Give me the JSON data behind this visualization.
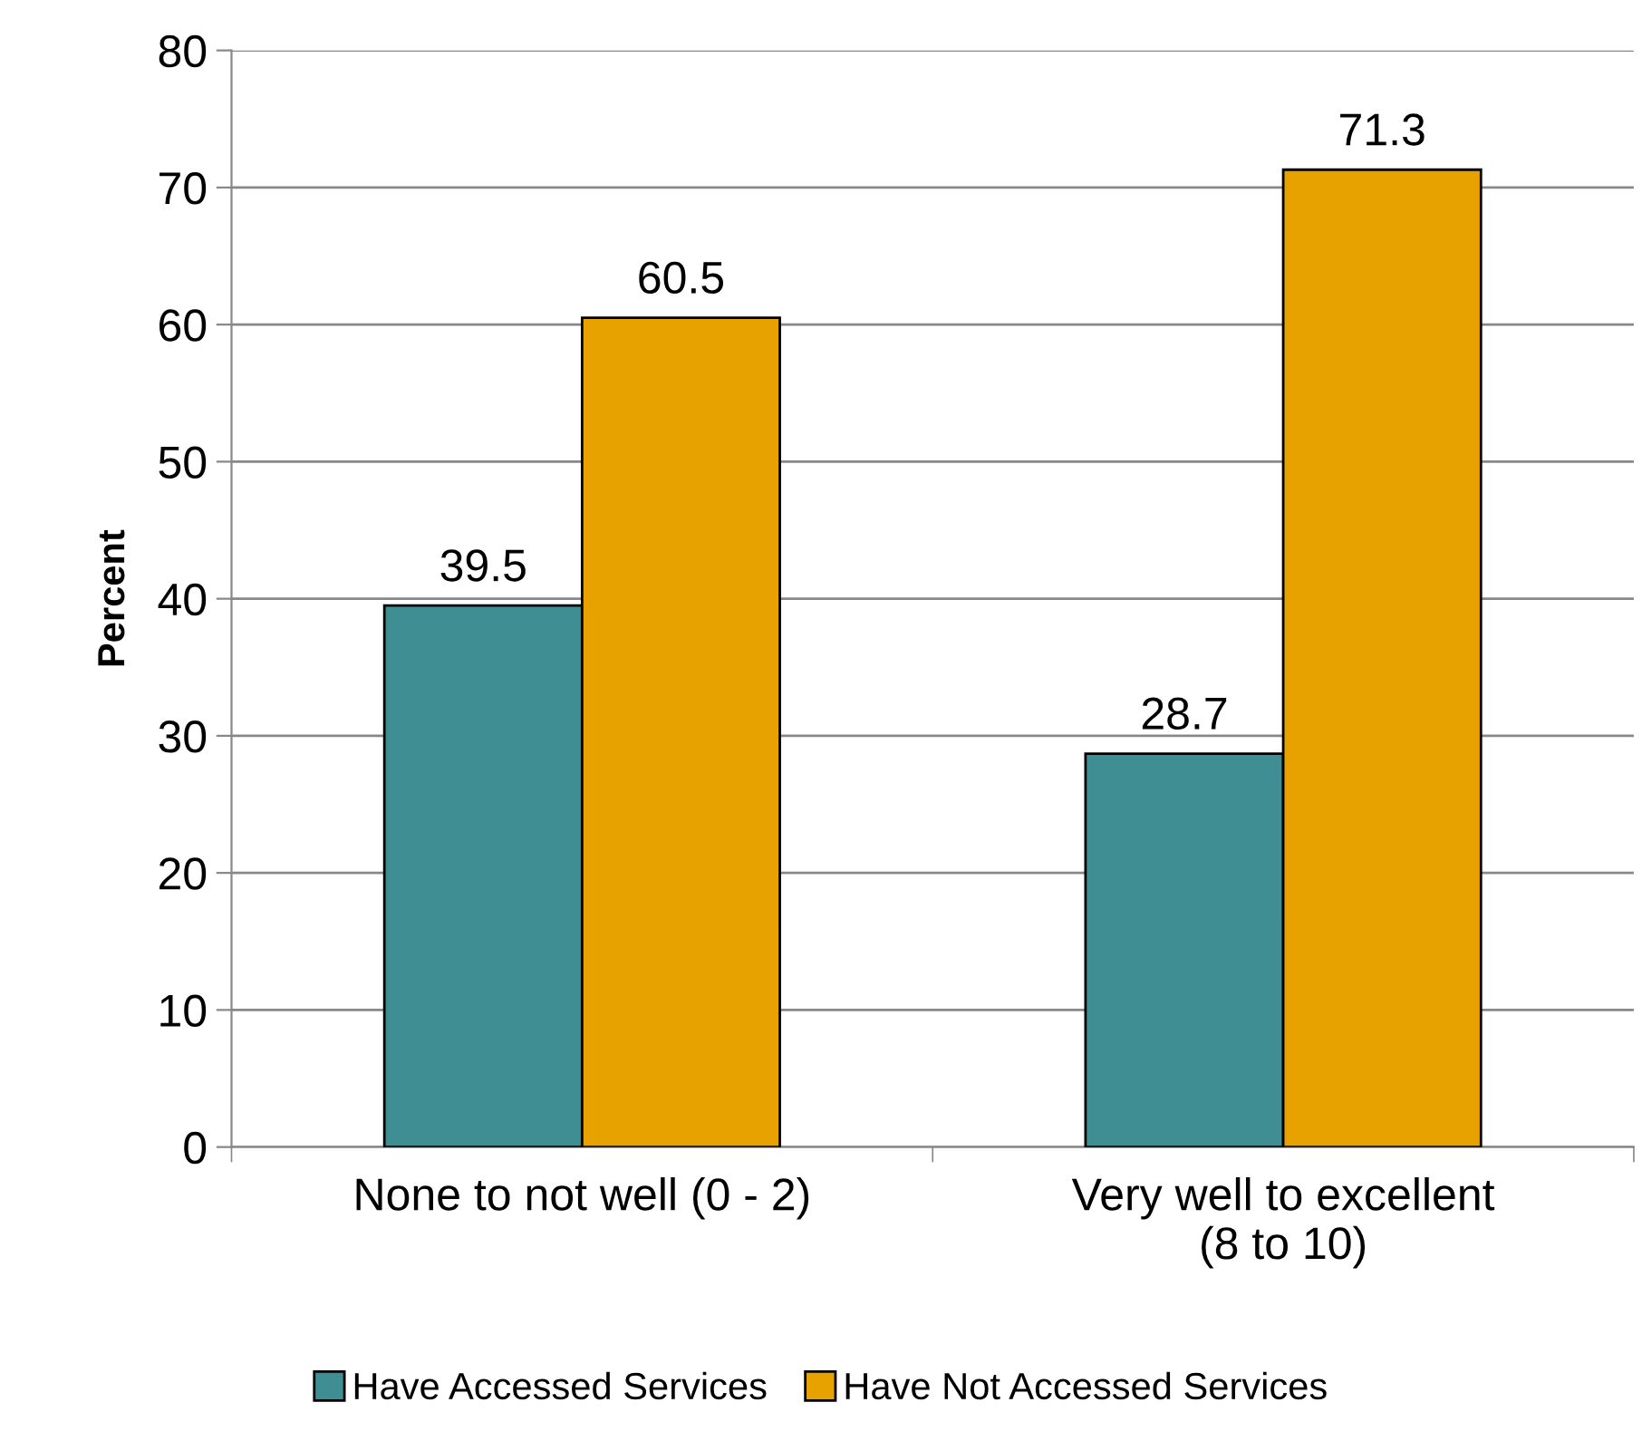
{
  "chart_data": {
    "type": "bar",
    "ylabel": "Percent",
    "categories": [
      "None to not well (0 - 2)",
      "Very well to excellent\n(8 to 10)"
    ],
    "series": [
      {
        "name": "Have Accessed Services",
        "color": "#3e8e93",
        "values": [
          39.5,
          28.7
        ]
      },
      {
        "name": "Have Not Accessed Services",
        "color": "#e8a200",
        "values": [
          60.5,
          71.3
        ]
      }
    ],
    "ylim": [
      0,
      80
    ],
    "yticks": [
      0,
      10,
      20,
      30,
      40,
      50,
      60,
      70,
      80
    ],
    "grid": "y",
    "legend": "bottom",
    "data_labels": true
  }
}
